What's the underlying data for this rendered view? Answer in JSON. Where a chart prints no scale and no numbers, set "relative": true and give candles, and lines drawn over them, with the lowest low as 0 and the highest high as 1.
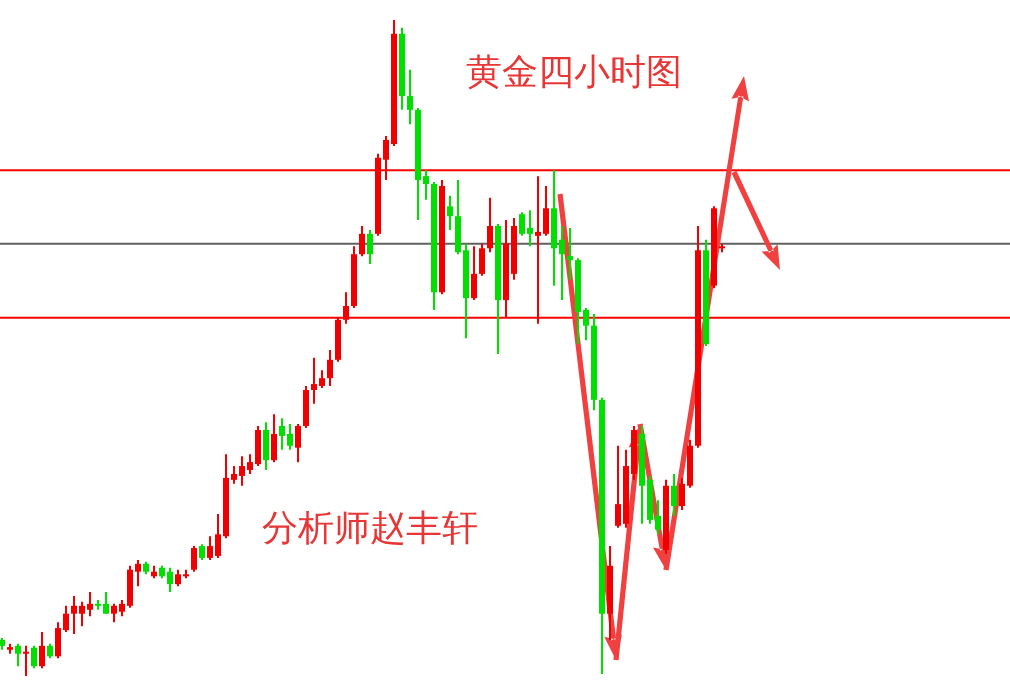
{
  "chart_data": {
    "type": "candlestick",
    "relative": true,
    "title": "黄金四小时图",
    "annotations": [
      "分析师赵丰轩"
    ],
    "colors": [
      "#00e000",
      "#f00000",
      "#00e000",
      "#f00000",
      "#00e000",
      "#f00000",
      "#00e000",
      "#f00000",
      "#f00000",
      "#f00000",
      "#f00000",
      "#f00000",
      "#00e000",
      "#00e000",
      "#f00000",
      "#f00000",
      "#f00000",
      "#f00000",
      "#00e000",
      "#f00000",
      "#00e000",
      "#00e000",
      "#f00000",
      "#f00000",
      "#f00000",
      "#00e000",
      "#f00000",
      "#f00000",
      "#f00000",
      "#f00000",
      "#f00000",
      "#f00000",
      "#f00000",
      "#00e000",
      "#f00000",
      "#00e000",
      "#00e000",
      "#f00000",
      "#f00000",
      "#f00000",
      "#f00000",
      "#f00000",
      "#f00000",
      "#f00000",
      "#f00000",
      "#f00000",
      "#00e000",
      "#f00000",
      "#f00000",
      "#f00000",
      "#00e000",
      "#00e000",
      "#00e000",
      "#00e000",
      "#00e000",
      "#f00000",
      "#00e000",
      "#00e000",
      "#00e000",
      "#f00000",
      "#f00000",
      "#f00000",
      "#00e000",
      "#f00000",
      "#f00000",
      "#00e000",
      "#00e000",
      "#f00000",
      "#f00000",
      "#00e000",
      "#00e000",
      "#00e000",
      "#00e000",
      "#00e000",
      "#00e000",
      "#00e000",
      "#f00000",
      "#f00000",
      "#f00000",
      "#f00000",
      "#00e000",
      "#00e000",
      "#00e000",
      "#f00000",
      "#00e000",
      "#f00000",
      "#f00000",
      "#f00000",
      "#00e000",
      "#f00000",
      "#f00000"
    ],
    "categories": [
      null,
      null,
      null,
      null,
      null,
      null,
      null,
      null,
      null,
      null,
      null,
      null,
      null,
      null,
      null,
      null,
      null,
      null,
      null,
      null,
      null,
      null,
      null,
      null,
      null,
      null,
      null,
      null,
      null,
      null,
      null,
      null,
      null,
      null,
      null,
      null,
      null,
      null,
      null,
      null,
      null,
      null,
      null,
      null,
      null,
      null,
      null,
      null,
      null,
      null,
      null,
      null,
      null,
      null,
      null,
      null,
      null,
      null,
      null,
      null,
      null,
      null,
      null,
      null,
      null,
      null,
      null,
      null,
      null,
      null,
      null,
      null,
      null,
      null,
      null,
      null,
      null,
      null,
      null,
      null,
      null,
      null,
      null,
      null,
      null,
      null,
      null,
      null,
      null,
      null,
      null
    ],
    "ohlc": [
      [
        0.055,
        0.058,
        0.04,
        0.046
      ],
      [
        0.04,
        0.049,
        0.034,
        0.044
      ],
      [
        0.046,
        0.049,
        0.015,
        0.034
      ],
      [
        0.034,
        0.046,
        0,
        0.037
      ],
      [
        0.043,
        0.046,
        0.012,
        0.015
      ],
      [
        0.015,
        0.067,
        0.012,
        0.046
      ],
      [
        0.046,
        0.049,
        0.027,
        0.03
      ],
      [
        0.03,
        0.082,
        0.027,
        0.073
      ],
      [
        0.07,
        0.107,
        0.067,
        0.095
      ],
      [
        0.095,
        0.122,
        0.064,
        0.107
      ],
      [
        0.095,
        0.113,
        0.076,
        0.107
      ],
      [
        0.101,
        0.128,
        0.091,
        0.11
      ],
      [
        0.11,
        0.116,
        0.101,
        0.107
      ],
      [
        0.11,
        0.128,
        0.095,
        0.095
      ],
      [
        0.095,
        0.11,
        0.082,
        0.107
      ],
      [
        0.098,
        0.116,
        0.091,
        0.11
      ],
      [
        0.107,
        0.168,
        0.104,
        0.162
      ],
      [
        0.159,
        0.177,
        0.137,
        0.171
      ],
      [
        0.171,
        0.174,
        0.155,
        0.159
      ],
      [
        0.152,
        0.168,
        0.149,
        0.159
      ],
      [
        0.165,
        0.168,
        0.149,
        0.152
      ],
      [
        0.159,
        0.165,
        0.128,
        0.14
      ],
      [
        0.14,
        0.162,
        0.137,
        0.155
      ],
      [
        0.152,
        0.162,
        0.149,
        0.155
      ],
      [
        0.162,
        0.198,
        0.159,
        0.195
      ],
      [
        0.198,
        0.201,
        0.177,
        0.18
      ],
      [
        0.18,
        0.213,
        0.177,
        0.198
      ],
      [
        0.183,
        0.247,
        0.18,
        0.216
      ],
      [
        0.213,
        0.338,
        0.21,
        0.302
      ],
      [
        0.299,
        0.32,
        0.293,
        0.308
      ],
      [
        0.305,
        0.335,
        0.29,
        0.32
      ],
      [
        0.314,
        0.338,
        0.308,
        0.326
      ],
      [
        0.323,
        0.381,
        0.32,
        0.375
      ],
      [
        0.375,
        0.387,
        0.314,
        0.329
      ],
      [
        0.329,
        0.399,
        0.326,
        0.369
      ],
      [
        0.381,
        0.393,
        0.345,
        0.366
      ],
      [
        0.369,
        0.384,
        0.345,
        0.351
      ],
      [
        0.348,
        0.384,
        0.326,
        0.381
      ],
      [
        0.381,
        0.442,
        0.378,
        0.436
      ],
      [
        0.436,
        0.485,
        0.415,
        0.445
      ],
      [
        0.442,
        0.466,
        0.439,
        0.454
      ],
      [
        0.454,
        0.497,
        0.442,
        0.482
      ],
      [
        0.482,
        0.546,
        0.479,
        0.543
      ],
      [
        0.543,
        0.585,
        0.537,
        0.564
      ],
      [
        0.564,
        0.655,
        0.561,
        0.643
      ],
      [
        0.643,
        0.686,
        0.64,
        0.674
      ],
      [
        0.674,
        0.68,
        0.628,
        0.643
      ],
      [
        0.674,
        0.796,
        0.671,
        0.79
      ],
      [
        0.787,
        0.823,
        0.756,
        0.817
      ],
      [
        0.811,
        1,
        0.808,
        0.979
      ],
      [
        0.979,
        0.988,
        0.863,
        0.884
      ],
      [
        0.884,
        0.924,
        0.841,
        0.863
      ],
      [
        0.863,
        0.866,
        0.695,
        0.756
      ],
      [
        0.762,
        0.771,
        0.726,
        0.75
      ],
      [
        0.75,
        0.753,
        0.558,
        0.585
      ],
      [
        0.585,
        0.756,
        0.582,
        0.747
      ],
      [
        0.716,
        0.732,
        0.68,
        0.701
      ],
      [
        0.701,
        0.756,
        0.643,
        0.646
      ],
      [
        0.649,
        0.659,
        0.515,
        0.576
      ],
      [
        0.576,
        0.655,
        0.573,
        0.613
      ],
      [
        0.613,
        0.659,
        0.61,
        0.652
      ],
      [
        0.652,
        0.729,
        0.646,
        0.686
      ],
      [
        0.686,
        0.689,
        0.491,
        0.573
      ],
      [
        0.573,
        0.695,
        0.546,
        0.659
      ],
      [
        0.613,
        0.698,
        0.604,
        0.686
      ],
      [
        0.704,
        0.707,
        0.671,
        0.674
      ],
      [
        0.683,
        0.71,
        0.655,
        0.674
      ],
      [
        0.671,
        0.762,
        0.537,
        0.677
      ],
      [
        0.674,
        0.747,
        0.671,
        0.713
      ],
      [
        0.713,
        0.771,
        0.595,
        0.652
      ],
      [
        0.665,
        0.686,
        0.573,
        0.643
      ],
      [
        0.64,
        0.683,
        0.604,
        0.634
      ],
      [
        0.634,
        0.637,
        0.506,
        0.555
      ],
      [
        0.558,
        0.561,
        0.512,
        0.534
      ],
      [
        0.534,
        0.552,
        0.405,
        0.421
      ],
      [
        0.421,
        0.424,
        0.003,
        0.095
      ],
      [
        0.095,
        0.198,
        0.055,
        0.168
      ],
      [
        0.229,
        0.351,
        0.226,
        0.262
      ],
      [
        0.232,
        0.345,
        0.226,
        0.32
      ],
      [
        0.308,
        0.381,
        0.299,
        0.375
      ],
      [
        0.369,
        0.381,
        0.232,
        0.29
      ],
      [
        0.299,
        0.305,
        0.232,
        0.238
      ],
      [
        0.244,
        0.268,
        0.216,
        0.223
      ],
      [
        0.192,
        0.299,
        0.186,
        0.29
      ],
      [
        0.29,
        0.308,
        0.244,
        0.259
      ],
      [
        0.259,
        0.302,
        0.253,
        0.293
      ],
      [
        0.29,
        0.36,
        0.287,
        0.351
      ],
      [
        0.351,
        0.686,
        0.348,
        0.649
      ],
      [
        0.649,
        0.665,
        0.503,
        0.506
      ],
      [
        0.595,
        0.716,
        0.591,
        0.713
      ],
      [
        0.652,
        0.659,
        0.646,
        0.655
      ]
    ],
    "ref_lines": [
      {
        "axis": "y",
        "value": 0.771,
        "color": "#ff0000"
      },
      {
        "axis": "y",
        "value": 0.659,
        "color": "#606060"
      },
      {
        "axis": "y",
        "value": 0.546,
        "color": "#ff0000"
      }
    ]
  }
}
